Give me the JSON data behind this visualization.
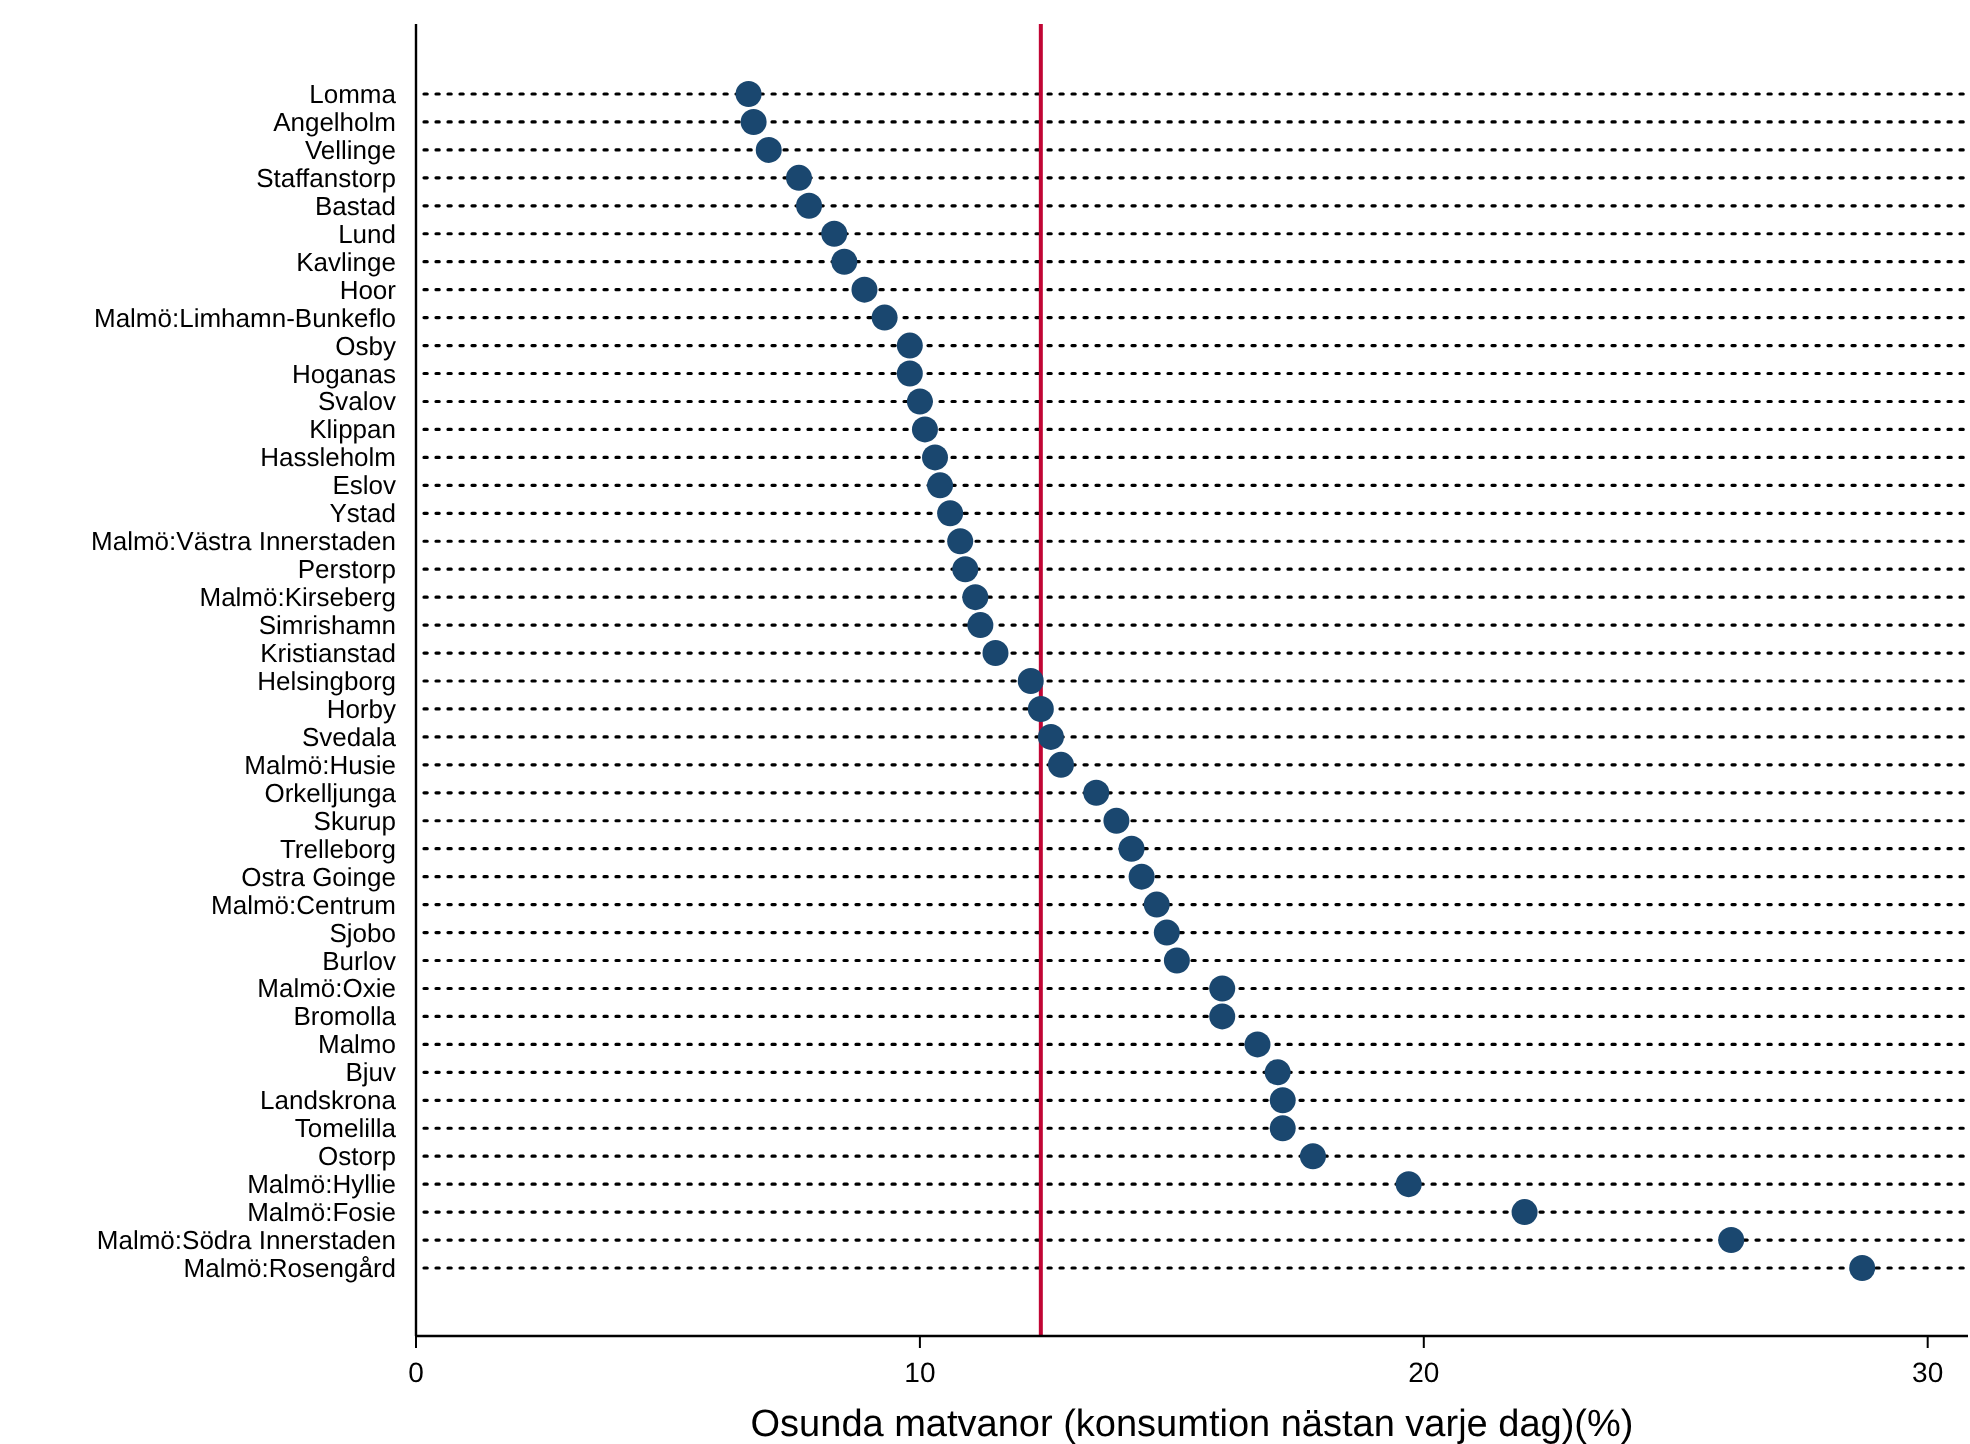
{
  "chart_data": {
    "type": "scatter",
    "orientation": "horizontal",
    "xlabel": "Osunda matvanor (konsumtion nästan varje dag)(%)",
    "categories": [
      "Lomma",
      "Angelholm",
      "Vellinge",
      "Staffanstorp",
      "Bastad",
      "Lund",
      "Kavlinge",
      "Hoor",
      "Malmö:Limhamn-Bunkeflo",
      "Osby",
      "Hoganas",
      "Svalov",
      "Klippan",
      "Hassleholm",
      "Eslov",
      "Ystad",
      "Malmö:Västra Innerstaden",
      "Perstorp",
      "Malmö:Kirseberg",
      "Simrishamn",
      "Kristianstad",
      "Helsingborg",
      "Horby",
      "Svedala",
      "Malmö:Husie",
      "Orkelljunga",
      "Skurup",
      "Trelleborg",
      "Ostra Goinge",
      "Malmö:Centrum",
      "Sjobo",
      "Burlov",
      "Malmö:Oxie",
      "Bromolla",
      "Malmo",
      "Bjuv",
      "Landskrona",
      "Tomelilla",
      "Ostorp",
      "Malmö:Hyllie",
      "Malmö:Fosie",
      "Malmö:Södra Innerstaden",
      "Malmö:Rosengård"
    ],
    "series": [
      {
        "color": "#1a476f",
        "values": [
          6.6,
          6.7,
          7.0,
          7.6,
          7.8,
          8.3,
          8.5,
          8.9,
          9.3,
          9.8,
          9.8,
          10.0,
          10.1,
          10.3,
          10.4,
          10.6,
          10.8,
          10.9,
          11.1,
          11.2,
          11.5,
          12.2,
          12.4,
          12.6,
          12.8,
          13.5,
          13.9,
          14.2,
          14.4,
          14.7,
          14.9,
          15.1,
          16.0,
          16.0,
          16.7,
          17.1,
          17.2,
          17.2,
          17.8,
          19.7,
          22.0,
          26.1,
          28.7
        ]
      }
    ],
    "xlim": [
      0,
      30.8
    ],
    "xticks": [
      0,
      10,
      20,
      30
    ],
    "grid": "y",
    "marker": "circle",
    "ref_lines": [
      {
        "axis": "x",
        "value": 12.4,
        "color": "#c10534"
      }
    ]
  }
}
